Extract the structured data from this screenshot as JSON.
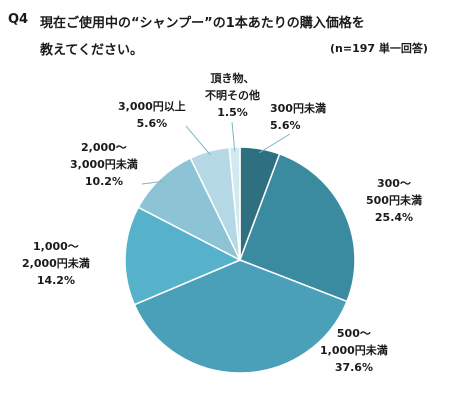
{
  "header": {
    "q_label": "Q4",
    "title_line1": "現在ご使用中の“シャンプー”の1本あたりの購入価格を",
    "title_line2": "教えてください。",
    "note": "(n=197 単一回答)"
  },
  "chart_data": {
    "type": "pie",
    "title": "現在ご使用中の“シャンプー”の1本あたりの購入価格を教えてください。",
    "start": "12 o'clock",
    "direction": "clockwise",
    "slices": [
      {
        "label_lines": [
          "300円未満"
        ],
        "value": 5.6,
        "pct_text": "5.6%",
        "color": "#2e6f80"
      },
      {
        "label_lines": [
          "300～",
          "500円未満"
        ],
        "value": 25.4,
        "pct_text": "25.4%",
        "color": "#3a8aa0"
      },
      {
        "label_lines": [
          "500～",
          "1,000円未満"
        ],
        "value": 37.6,
        "pct_text": "37.6%",
        "color": "#4aa0b8"
      },
      {
        "label_lines": [
          "1,000～",
          "2,000円未満"
        ],
        "value": 14.2,
        "pct_text": "14.2%",
        "color": "#56b2ca"
      },
      {
        "label_lines": [
          "2,000～",
          "3,000円未満"
        ],
        "value": 10.2,
        "pct_text": "10.2%",
        "color": "#8cc4d6"
      },
      {
        "label_lines": [
          "3,000円以上"
        ],
        "value": 5.6,
        "pct_text": "5.6%",
        "color": "#b4d9e4"
      },
      {
        "label_lines": [
          "頂き物、",
          "不明その他"
        ],
        "value": 1.5,
        "pct_text": "1.5%",
        "color": "#d4e9ef"
      }
    ]
  }
}
